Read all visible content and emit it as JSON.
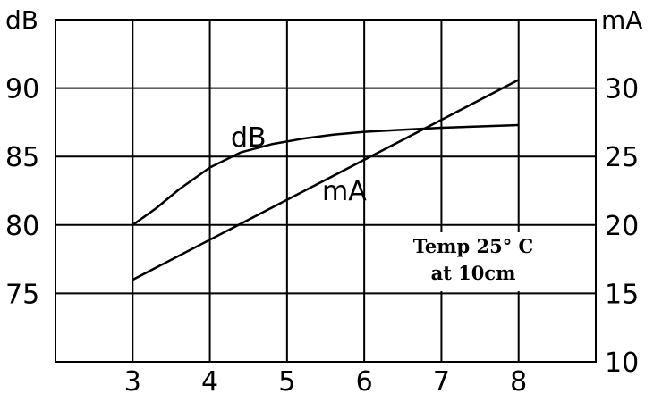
{
  "chart_data": {
    "type": "line",
    "x_ticks": [
      3,
      4,
      5,
      6,
      7,
      8
    ],
    "xlim": [
      2,
      9
    ],
    "left_axis": {
      "unit": "dB",
      "ylim": [
        70,
        95
      ],
      "ticks": [
        75,
        80,
        85,
        90
      ]
    },
    "right_axis": {
      "unit": "mA",
      "ylim": [
        10,
        35
      ],
      "ticks": [
        10,
        15,
        20,
        25,
        30
      ]
    },
    "series": [
      {
        "name": "dB",
        "axis": "left",
        "x": [
          3,
          3.3,
          3.6,
          4,
          4.4,
          4.8,
          5.2,
          5.6,
          6,
          6.5,
          7,
          7.5,
          8
        ],
        "values": [
          80,
          81.2,
          82.6,
          84.2,
          85.3,
          85.9,
          86.3,
          86.6,
          86.8,
          86.95,
          87.1,
          87.2,
          87.3
        ]
      },
      {
        "name": "mA",
        "axis": "right",
        "x": [
          3,
          8
        ],
        "values": [
          16,
          30.6
        ]
      }
    ],
    "annotation": [
      "Temp 25° C",
      "at 10cm"
    ],
    "grid": true
  }
}
